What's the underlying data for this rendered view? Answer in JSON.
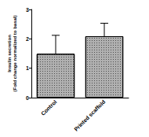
{
  "chart_data": {
    "type": "bar",
    "y_label": "Insulin secretion\n(Fold change normalized to basal)",
    "categories": [
      "Control",
      "Printed scaffold"
    ],
    "values": [
      1.49,
      2.09
    ],
    "errors": [
      0.63,
      0.44
    ],
    "color": "#b0b0b0",
    "ylim": [
      0,
      3
    ],
    "yticks": [
      0,
      1,
      2,
      3
    ],
    "grid": false
  }
}
